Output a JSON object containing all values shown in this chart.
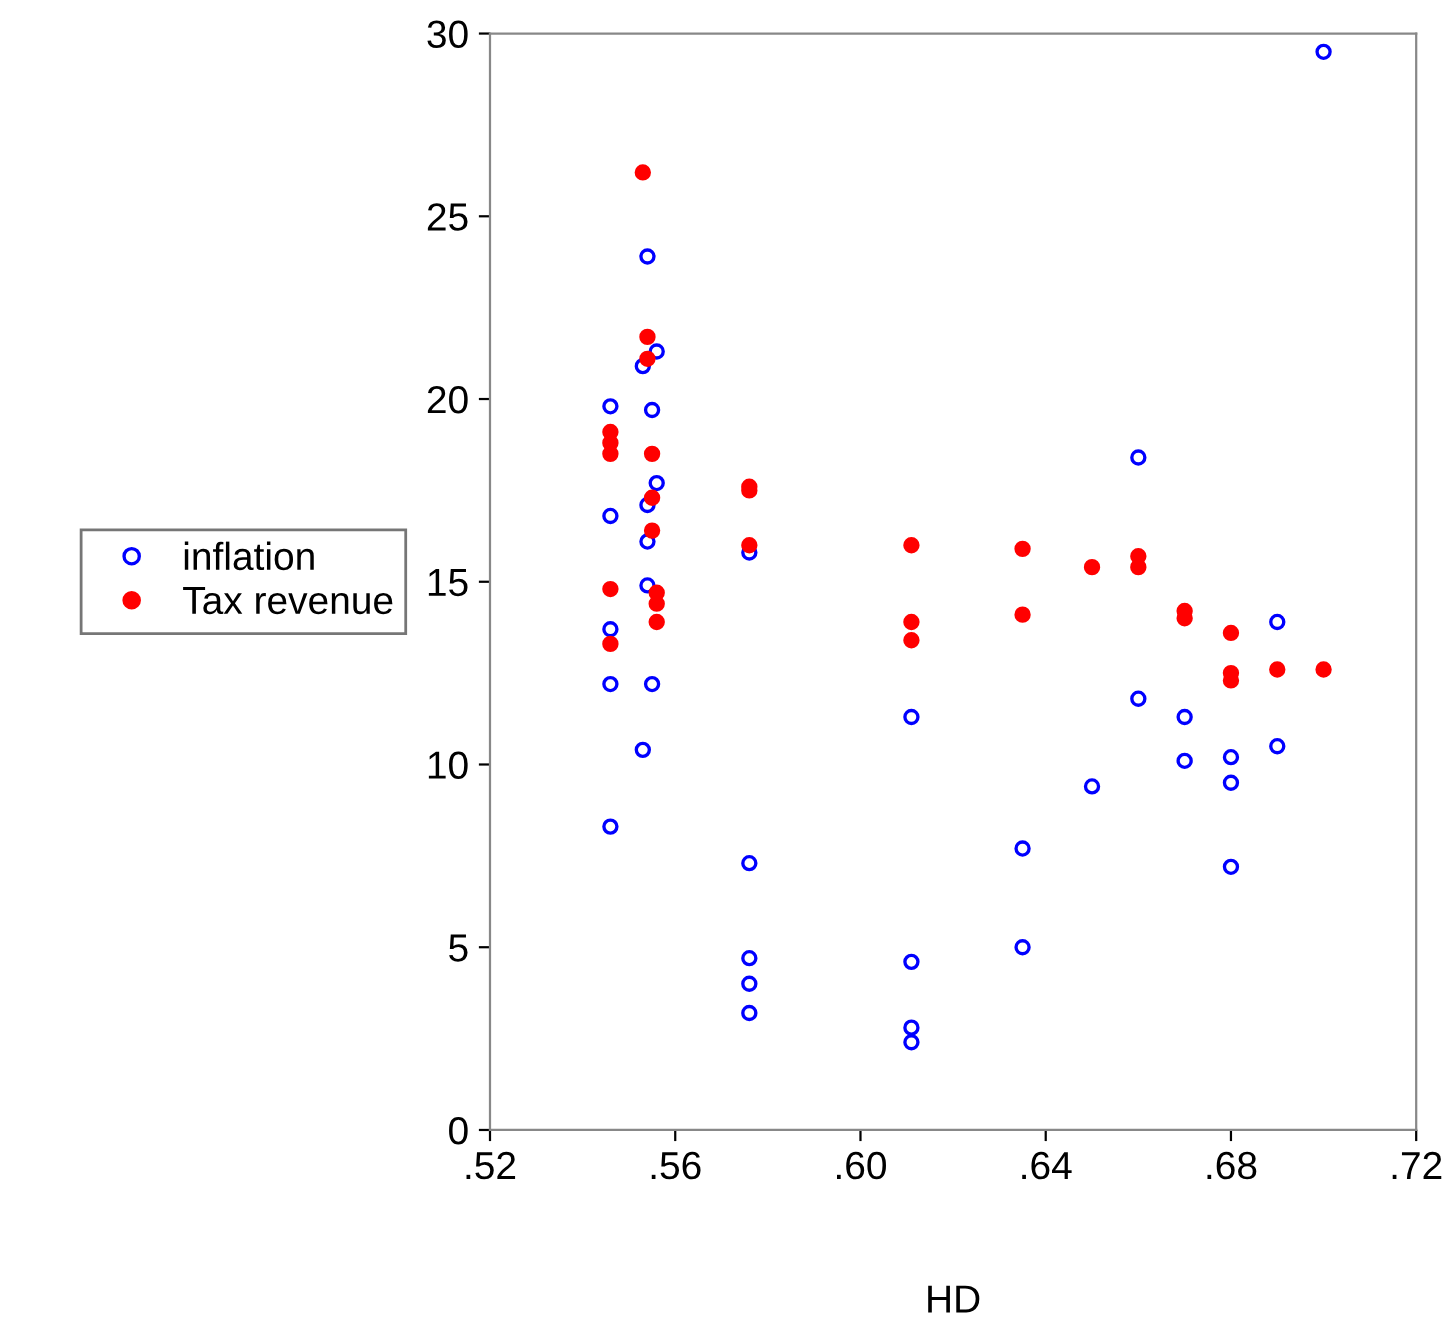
{
  "chart_data": {
    "type": "scatter",
    "xlabel": "HD",
    "xlim": [
      0.52,
      0.72
    ],
    "xticks": [
      {
        "value": 0.52,
        "label": ".52"
      },
      {
        "value": 0.56,
        "label": ".56"
      },
      {
        "value": 0.6,
        "label": ".60"
      },
      {
        "value": 0.64,
        "label": ".64"
      },
      {
        "value": 0.68,
        "label": ".68"
      },
      {
        "value": 0.72,
        "label": ".72"
      }
    ],
    "ylim": [
      0,
      30
    ],
    "yticks": [
      0,
      5,
      10,
      15,
      20,
      25,
      30
    ],
    "grid": false,
    "legend": "left",
    "marker": "circle",
    "series": [
      {
        "name": "inflation",
        "color": "#0000ff",
        "x": [
          0.546,
          0.546,
          0.546,
          0.546,
          0.546,
          0.554,
          0.556,
          0.553,
          0.555,
          0.556,
          0.554,
          0.554,
          0.554,
          0.555,
          0.553,
          0.576,
          0.576,
          0.576,
          0.576,
          0.576,
          0.611,
          0.611,
          0.611,
          0.611,
          0.635,
          0.635,
          0.65,
          0.66,
          0.66,
          0.67,
          0.67,
          0.68,
          0.68,
          0.68,
          0.69,
          0.69,
          0.7
        ],
        "values": [
          19.8,
          16.8,
          13.7,
          12.2,
          8.3,
          23.9,
          21.3,
          20.9,
          19.7,
          17.7,
          17.1,
          16.1,
          14.9,
          12.2,
          10.4,
          15.8,
          7.3,
          4.7,
          4.0,
          3.2,
          11.3,
          4.6,
          2.8,
          2.4,
          7.7,
          5.0,
          9.4,
          18.4,
          11.8,
          11.3,
          10.1,
          10.2,
          9.5,
          7.2,
          13.9,
          10.5,
          29.5
        ]
      },
      {
        "name": "Tax revenue",
        "color": "#ff0000",
        "x": [
          0.546,
          0.546,
          0.546,
          0.546,
          0.546,
          0.553,
          0.554,
          0.554,
          0.555,
          0.555,
          0.555,
          0.556,
          0.556,
          0.556,
          0.576,
          0.576,
          0.576,
          0.611,
          0.611,
          0.611,
          0.635,
          0.635,
          0.65,
          0.66,
          0.66,
          0.67,
          0.67,
          0.68,
          0.68,
          0.68,
          0.69,
          0.7
        ],
        "values": [
          19.1,
          18.8,
          18.5,
          14.8,
          13.3,
          26.2,
          21.7,
          21.1,
          18.5,
          17.3,
          16.4,
          14.7,
          14.4,
          13.9,
          17.6,
          17.5,
          16.0,
          16.0,
          13.9,
          13.4,
          15.9,
          14.1,
          15.4,
          15.7,
          15.4,
          14.2,
          14.0,
          13.6,
          12.5,
          12.3,
          12.6,
          12.6
        ]
      }
    ]
  }
}
